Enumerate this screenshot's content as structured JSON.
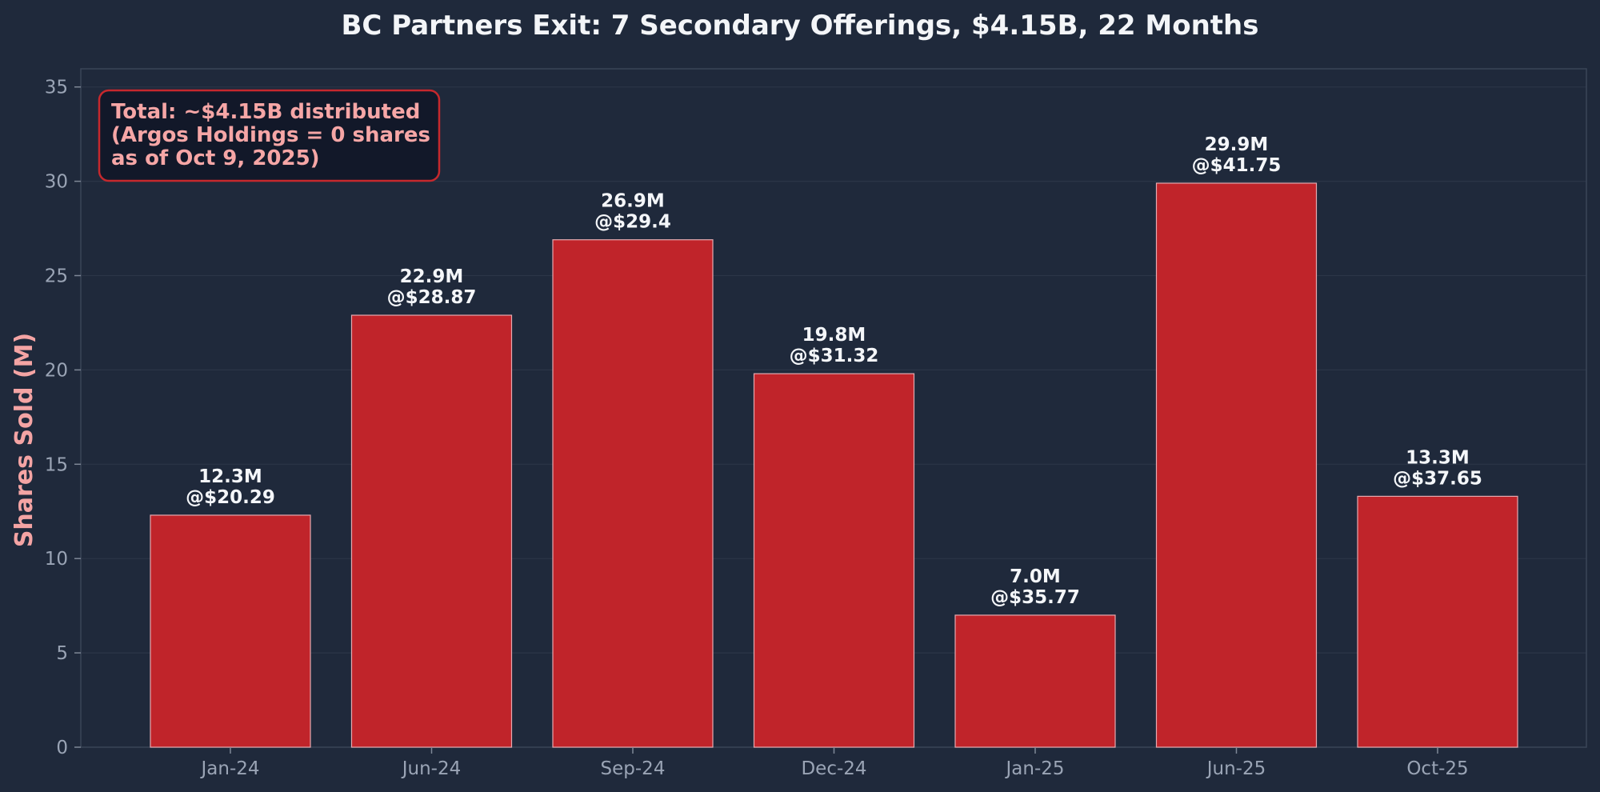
{
  "chart_data": {
    "type": "bar",
    "title": "BC Partners Exit: 7 Secondary Offerings, $4.15B, 22 Months",
    "xlabel": "",
    "ylabel": "Shares Sold (M)",
    "categories": [
      "Jan-24",
      "Jun-24",
      "Sep-24",
      "Dec-24",
      "Jan-25",
      "Jun-25",
      "Oct-25"
    ],
    "values": [
      12.3,
      22.9,
      26.9,
      19.8,
      7.0,
      29.9,
      13.3
    ],
    "value_labels": [
      "12.3M",
      "22.9M",
      "26.9M",
      "19.8M",
      "7.0M",
      "29.9M",
      "13.3M"
    ],
    "price_labels": [
      "@$20.29",
      "@$28.87",
      "@$29.4",
      "@$31.32",
      "@$35.77",
      "@$41.75",
      "@$37.65"
    ],
    "ylim": [
      0,
      36
    ],
    "yticks": [
      0,
      5,
      10,
      15,
      20,
      25,
      30,
      35
    ],
    "grid": true,
    "annotation": {
      "lines": [
        "Total: ~$4.15B distributed",
        "(Argos Holdings = 0 shares",
        "as of Oct 9, 2025)"
      ],
      "placement": "top-left"
    },
    "colors": {
      "background": "#1f293b",
      "bar": "#c0242a",
      "bar_edge": "#e5aab0",
      "annotation_border": "#c6282d",
      "annotation_fill": "#121829"
    }
  }
}
